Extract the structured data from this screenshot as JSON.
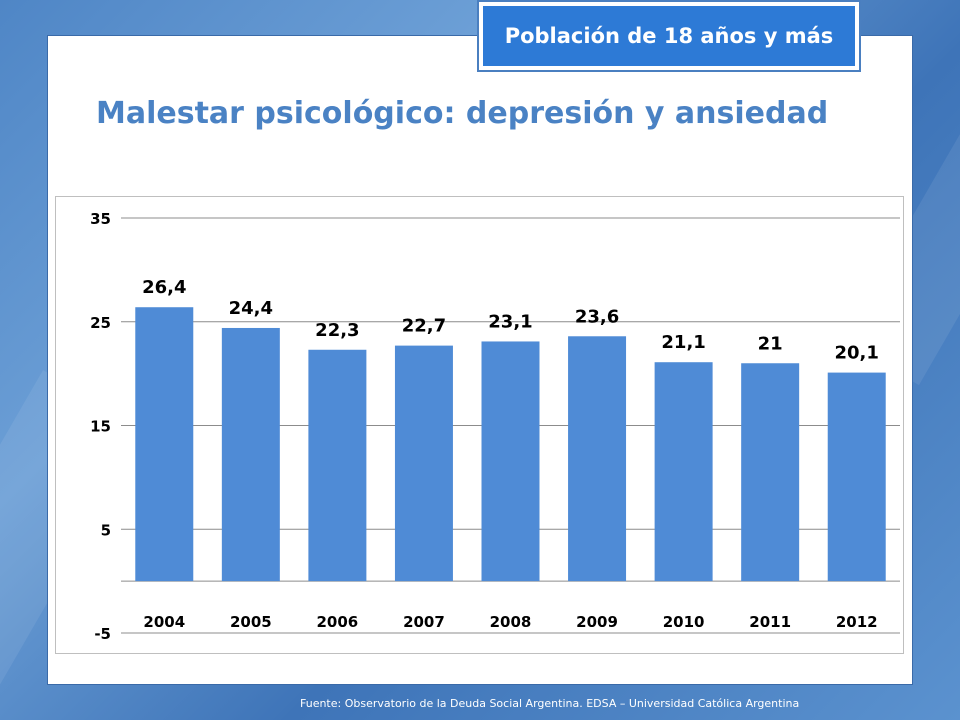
{
  "badge": {
    "label": "Población de 18 años y más"
  },
  "footer": {
    "source": "Fuente:  Observatorio de  la Deuda Social Argentina. EDSA – Universidad Católica Argentina"
  },
  "colors": {
    "bar": "#4f8bd6",
    "title": "#4a82c4",
    "badge_fill": "#2d7ad6"
  },
  "chart_data": {
    "type": "bar",
    "title": "Malestar psicológico: depresión y ansiedad",
    "xlabel": "",
    "ylabel": "",
    "categories": [
      "2004",
      "2005",
      "2006",
      "2007",
      "2008",
      "2009",
      "2010",
      "2011",
      "2012"
    ],
    "values": [
      26.4,
      24.4,
      22.3,
      22.7,
      23.1,
      23.6,
      21.1,
      21,
      20.1
    ],
    "data_labels": [
      "26,4",
      "24,4",
      "22,3",
      "22,7",
      "23,1",
      "23,6",
      "21,1",
      "21",
      "20,1"
    ],
    "ylim": [
      -5,
      35
    ],
    "yticks": [
      -5,
      5,
      15,
      25,
      35
    ],
    "ytick_labels": [
      "-5",
      "5",
      "15",
      "25",
      "35"
    ],
    "baseline": 0,
    "grid": true,
    "legend": "none"
  }
}
